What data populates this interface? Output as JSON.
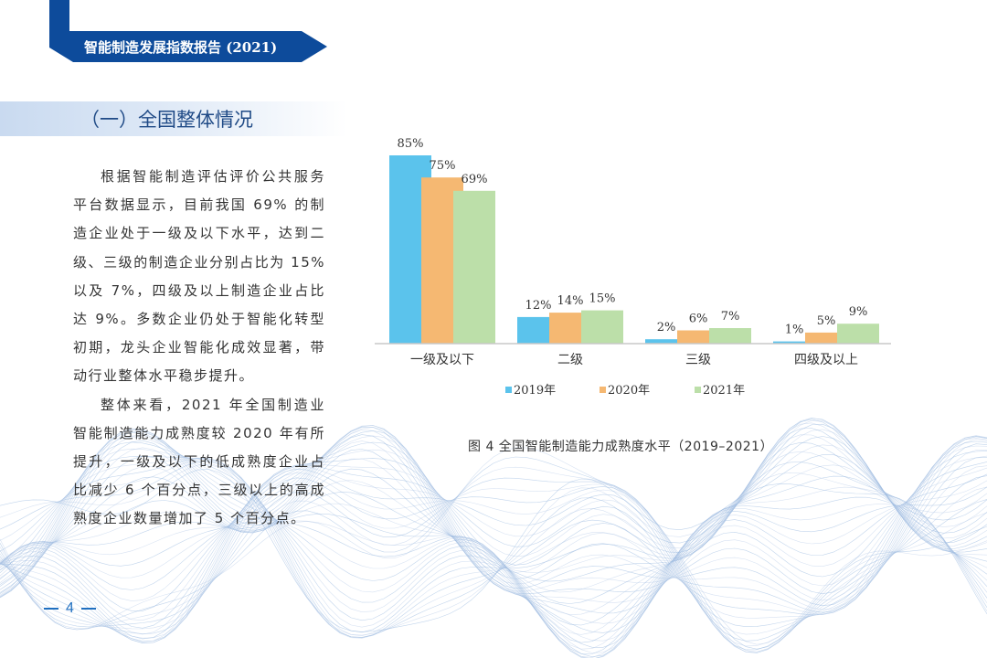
{
  "header": {
    "report_title": "智能制造发展指数报告 (2021)"
  },
  "section": {
    "title": "（一）全国整体情况"
  },
  "body": {
    "paragraphs": [
      "根据智能制造评估评价公共服务平台数据显示，目前我国 69% 的制造企业处于一级及以下水平，达到二级、三级的制造企业分别占比为 15% 以及 7%，四级及以上制造企业占比达 9%。多数企业仍处于智能化转型初期，龙头企业智能化成效显著，带动行业整体水平稳步提升。",
      "整体来看，2021 年全国制造业智能制造能力成熟度较 2020 年有所提升，一级及以下的低成熟度企业占比减少 6 个百分点，三级以上的高成熟度企业数量增加了 5 个百分点。"
    ]
  },
  "chart_data": {
    "type": "bar",
    "categories": [
      "一级及以下",
      "二级",
      "三级",
      "四级及以上"
    ],
    "series": [
      {
        "name": "2019年",
        "values": [
          85,
          12,
          2,
          1
        ],
        "labels": [
          "85%",
          "12%",
          "2%",
          "1%"
        ],
        "color": "#5bc3ec"
      },
      {
        "name": "2020年",
        "values": [
          75,
          14,
          6,
          5
        ],
        "labels": [
          "75%",
          "14%",
          "6%",
          "5%"
        ],
        "color": "#f5b872"
      },
      {
        "name": "2021年",
        "values": [
          69,
          15,
          7,
          9
        ],
        "labels": [
          "69%",
          "15%",
          "7%",
          "9%"
        ],
        "color": "#bcdfa9"
      }
    ],
    "ylim": [
      0,
      85
    ],
    "grid": false,
    "legend_position": "bottom",
    "caption": "图 4  全国智能制造能力成熟度水平（2019–2021）"
  },
  "footer": {
    "page_number": "4"
  },
  "colors": {
    "brand_blue": "#0d4b9b",
    "section_text": "#1f4a86",
    "page_number": "#1f6fc0"
  }
}
